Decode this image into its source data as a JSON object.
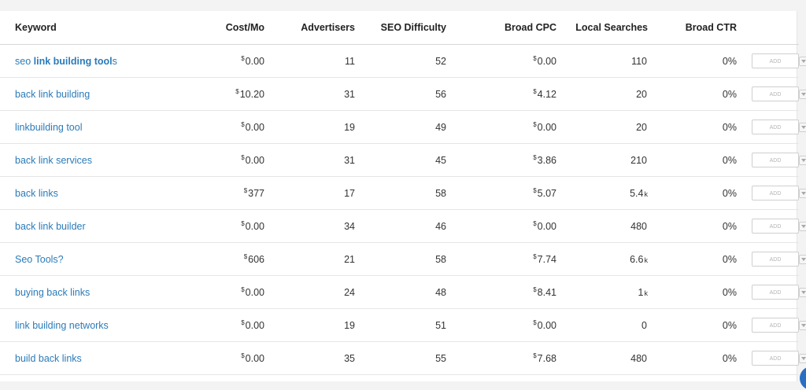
{
  "table": {
    "headers": {
      "keyword": "Keyword",
      "cost": "Cost/Mo",
      "advertisers": "Advertisers",
      "seo": "SEO Difficulty",
      "cpc": "Broad CPC",
      "local": "Local Searches",
      "ctr": "Broad CTR"
    },
    "currency_symbol": "$",
    "add_label": "ADD",
    "rows": [
      {
        "kw_pre": "seo ",
        "kw_bold": "link building tool",
        "kw_post": "s",
        "cost": "0.00",
        "advertisers": "11",
        "seo": "52",
        "cpc": "0.00",
        "local": "110",
        "local_suffix": "",
        "ctr": "0%"
      },
      {
        "kw_pre": "back link building",
        "kw_bold": "",
        "kw_post": "",
        "cost": "10.20",
        "advertisers": "31",
        "seo": "56",
        "cpc": "4.12",
        "local": "20",
        "local_suffix": "",
        "ctr": "0%"
      },
      {
        "kw_pre": "linkbuilding tool",
        "kw_bold": "",
        "kw_post": "",
        "cost": "0.00",
        "advertisers": "19",
        "seo": "49",
        "cpc": "0.00",
        "local": "20",
        "local_suffix": "",
        "ctr": "0%"
      },
      {
        "kw_pre": "back link services",
        "kw_bold": "",
        "kw_post": "",
        "cost": "0.00",
        "advertisers": "31",
        "seo": "45",
        "cpc": "3.86",
        "local": "210",
        "local_suffix": "",
        "ctr": "0%"
      },
      {
        "kw_pre": "back links",
        "kw_bold": "",
        "kw_post": "",
        "cost": "377",
        "advertisers": "17",
        "seo": "58",
        "cpc": "5.07",
        "local": "5.4",
        "local_suffix": "k",
        "ctr": "0%"
      },
      {
        "kw_pre": "back link builder",
        "kw_bold": "",
        "kw_post": "",
        "cost": "0.00",
        "advertisers": "34",
        "seo": "46",
        "cpc": "0.00",
        "local": "480",
        "local_suffix": "",
        "ctr": "0%"
      },
      {
        "kw_pre": "Seo Tools?",
        "kw_bold": "",
        "kw_post": "",
        "cost": "606",
        "advertisers": "21",
        "seo": "58",
        "cpc": "7.74",
        "local": "6.6",
        "local_suffix": "k",
        "ctr": "0%"
      },
      {
        "kw_pre": "buying back links",
        "kw_bold": "",
        "kw_post": "",
        "cost": "0.00",
        "advertisers": "24",
        "seo": "48",
        "cpc": "8.41",
        "local": "1",
        "local_suffix": "k",
        "ctr": "0%"
      },
      {
        "kw_pre": "link building networks",
        "kw_bold": "",
        "kw_post": "",
        "cost": "0.00",
        "advertisers": "19",
        "seo": "51",
        "cpc": "0.00",
        "local": "0",
        "local_suffix": "",
        "ctr": "0%"
      },
      {
        "kw_pre": "build back links",
        "kw_bold": "",
        "kw_post": "",
        "cost": "0.00",
        "advertisers": "35",
        "seo": "55",
        "cpc": "7.68",
        "local": "480",
        "local_suffix": "",
        "ctr": "0%"
      }
    ]
  },
  "icons": {
    "row_menu": "chevron-down-icon",
    "chat": "chat-icon"
  },
  "colors": {
    "keyword_link": "#2b7bb9",
    "chat_bubble": "#2a6fc2"
  }
}
